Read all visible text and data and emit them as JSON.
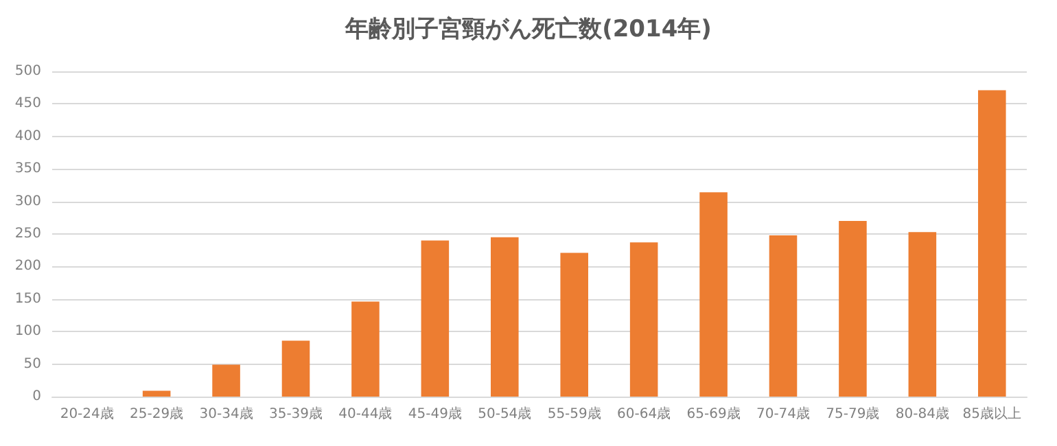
{
  "chart_data": {
    "type": "bar",
    "title": "年齢別子宮頸がん死亡数(2014年)",
    "categories": [
      "20-24歳",
      "25-29歳",
      "30-34歳",
      "35-39歳",
      "40-44歳",
      "45-49歳",
      "50-54歳",
      "55-59歳",
      "60-64歳",
      "65-69歳",
      "70-74歳",
      "75-79歳",
      "80-84歳",
      "85歳以上"
    ],
    "values": [
      0,
      9,
      49,
      86,
      146,
      240,
      245,
      221,
      237,
      314,
      248,
      270,
      253,
      471
    ],
    "color": "#ed7d31",
    "ylim": [
      0,
      500
    ],
    "yticks": [
      0,
      50,
      100,
      150,
      200,
      250,
      300,
      350,
      400,
      450,
      500
    ],
    "grid": true
  }
}
